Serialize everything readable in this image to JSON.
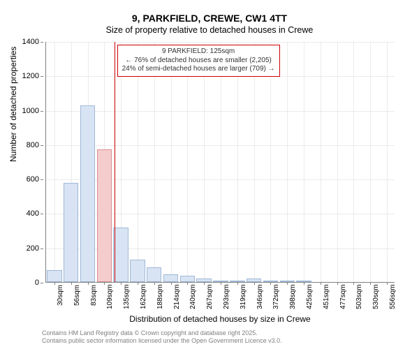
{
  "title": {
    "main": "9, PARKFIELD, CREWE, CW1 4TT",
    "sub": "Size of property relative to detached houses in Crewe"
  },
  "chart": {
    "type": "histogram",
    "background_color": "#ffffff",
    "grid_color": "#cccccc",
    "bar_color": "#d8e4f3",
    "bar_border_color": "#a0b8d8",
    "highlight_bar_color": "#f5cccc",
    "highlight_bar_border": "#d89090",
    "marker_color": "#cc0000",
    "ylim": [
      0,
      1400
    ],
    "ytick_step": 200,
    "yticks": [
      0,
      200,
      400,
      600,
      800,
      1000,
      1200,
      1400
    ],
    "x_categories": [
      "30sqm",
      "56sqm",
      "83sqm",
      "109sqm",
      "135sqm",
      "162sqm",
      "188sqm",
      "214sqm",
      "240sqm",
      "267sqm",
      "293sqm",
      "319sqm",
      "346sqm",
      "372sqm",
      "398sqm",
      "425sqm",
      "451sqm",
      "477sqm",
      "503sqm",
      "530sqm",
      "556sqm"
    ],
    "bar_values": [
      70,
      575,
      1025,
      770,
      315,
      130,
      85,
      45,
      35,
      20,
      10,
      5,
      20,
      5,
      5,
      5,
      0,
      0,
      0,
      0,
      0
    ],
    "highlight_index": 3,
    "marker_position": 3.6,
    "bar_width": 0.9,
    "y_axis_label": "Number of detached properties",
    "x_axis_label": "Distribution of detached houses by size in Crewe",
    "label_fontsize": 12,
    "tick_fontsize": 11
  },
  "annotation": {
    "line1": "9 PARKFIELD: 125sqm",
    "line2": "← 76% of detached houses are smaller (2,205)",
    "line3": "24% of semi-detached houses are larger (709) →"
  },
  "footer": {
    "line1": "Contains HM Land Registry data © Crown copyright and database right 2025.",
    "line2": "Contains public sector information licensed under the Open Government Licence v3.0."
  }
}
